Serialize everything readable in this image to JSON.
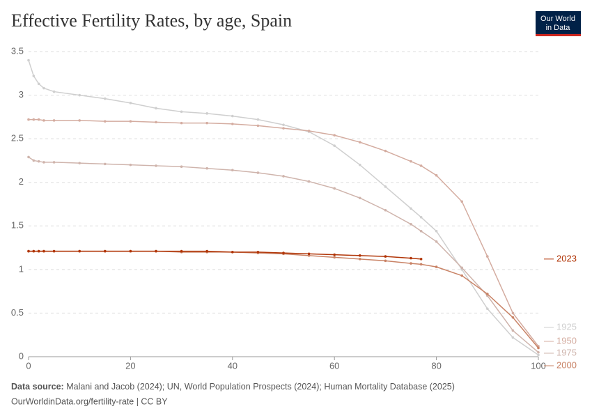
{
  "chart_data": {
    "type": "line",
    "title": "Effective Fertility Rates, by age, Spain",
    "logo": [
      "Our World",
      "in Data"
    ],
    "source_label": "Data source:",
    "source": "Malani and Jacob (2024); UN, World Population Prospects (2024); Human Mortality Database (2025)",
    "footer": "OurWorldinData.org/fertility-rate | CC BY",
    "x": [
      0,
      1,
      2,
      3,
      5,
      10,
      15,
      20,
      25,
      30,
      35,
      40,
      45,
      50,
      55,
      60,
      65,
      70,
      75,
      77,
      80,
      85,
      90,
      95,
      100
    ],
    "xlim": [
      0,
      100
    ],
    "xticks": [
      0,
      20,
      40,
      60,
      80,
      100
    ],
    "ylim": [
      0,
      3.5
    ],
    "yticks": [
      0,
      0.5,
      1,
      1.5,
      2,
      2.5,
      3,
      3.5
    ],
    "grid": true,
    "series": [
      {
        "name": "1925",
        "color": "#cfcfcf",
        "values": [
          3.4,
          3.22,
          3.13,
          3.08,
          3.04,
          3.0,
          2.96,
          2.91,
          2.85,
          2.81,
          2.79,
          2.76,
          2.72,
          2.66,
          2.58,
          2.42,
          2.2,
          1.95,
          1.7,
          1.6,
          1.44,
          1.0,
          0.55,
          0.22,
          0.02
        ]
      },
      {
        "name": "1950",
        "color": "#d4aca0",
        "values": [
          2.72,
          2.72,
          2.72,
          2.71,
          2.71,
          2.71,
          2.7,
          2.7,
          2.69,
          2.68,
          2.68,
          2.67,
          2.65,
          2.62,
          2.59,
          2.54,
          2.46,
          2.36,
          2.24,
          2.19,
          2.08,
          1.78,
          1.15,
          0.5,
          0.12
        ]
      },
      {
        "name": "1975",
        "color": "#cfb4ac",
        "values": [
          2.29,
          2.25,
          2.24,
          2.23,
          2.23,
          2.22,
          2.21,
          2.2,
          2.19,
          2.18,
          2.16,
          2.14,
          2.11,
          2.07,
          2.01,
          1.93,
          1.82,
          1.68,
          1.52,
          1.44,
          1.32,
          1.02,
          0.7,
          0.3,
          0.05
        ]
      },
      {
        "name": "2000",
        "color": "#c98366",
        "values": [
          1.21,
          1.21,
          1.21,
          1.21,
          1.21,
          1.21,
          1.21,
          1.21,
          1.21,
          1.2,
          1.2,
          1.2,
          1.19,
          1.18,
          1.16,
          1.14,
          1.12,
          1.1,
          1.07,
          1.06,
          1.03,
          0.93,
          0.72,
          0.45,
          0.1
        ]
      },
      {
        "name": "2023",
        "color": "#b13507",
        "values": [
          1.21,
          1.21,
          1.21,
          1.21,
          1.21,
          1.21,
          1.21,
          1.21,
          1.21,
          1.21,
          1.21,
          1.2,
          1.2,
          1.19,
          1.18,
          1.17,
          1.16,
          1.15,
          1.13,
          1.12,
          null,
          null,
          null,
          null,
          null
        ]
      }
    ]
  }
}
